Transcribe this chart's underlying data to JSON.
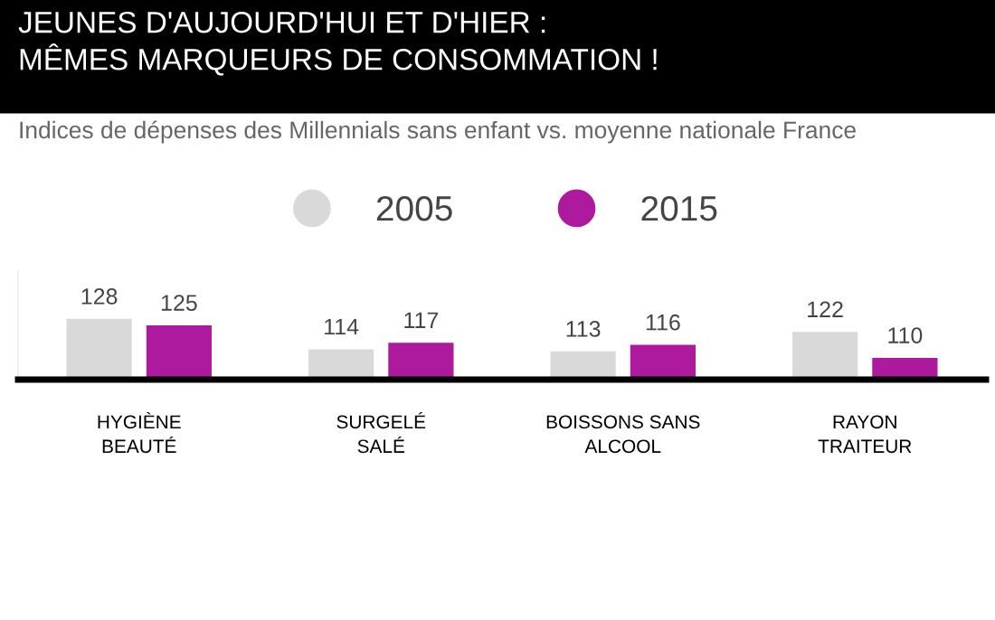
{
  "chart_data": {
    "type": "bar",
    "title": "JEUNES D'AUJOURD'HUI ET D'HIER :\nMÊMES MARQUEURS DE CONSOMMATION !",
    "subtitle": "Indices de dépenses des Millennials sans enfant vs. moyenne nationale France",
    "categories": [
      "HYGIÈNE\nBEAUTÉ",
      "SURGELÉ\nSALÉ",
      "BOISSONS SANS\nALCOOL",
      "RAYON\nTRAITEUR"
    ],
    "series": [
      {
        "name": "2005",
        "color": "#d9d9d9",
        "values": [
          128,
          114,
          113,
          122
        ]
      },
      {
        "name": "2015",
        "color": "#ad1a9e",
        "values": [
          125,
          117,
          116,
          110
        ]
      }
    ],
    "ylim": [
      100,
      150
    ],
    "tick_labels": "x",
    "data_labels": true,
    "legend": "top"
  }
}
